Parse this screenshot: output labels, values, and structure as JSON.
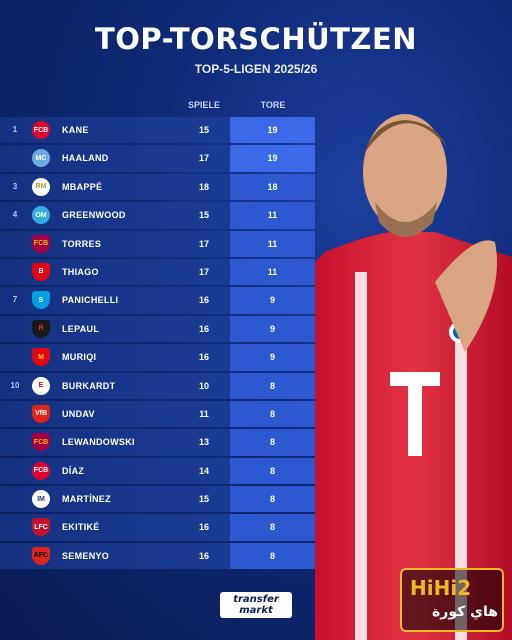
{
  "title": "TOP-TORSCHÜTZEN",
  "subtitle": "TOP-5-LIGEN 2025/26",
  "columns": {
    "apps": "SPIELE",
    "goals": "TORE"
  },
  "rows": [
    {
      "rank": "1",
      "name": "KANE",
      "apps": "15",
      "goals": "19",
      "crest": "bayern-crest-icon",
      "crest_bg": "#dc052d",
      "crest_fg": "#ffffff",
      "crest_text": "FCB"
    },
    {
      "rank": "",
      "name": "HAALAND",
      "apps": "17",
      "goals": "19",
      "crest": "man-city-crest-icon",
      "crest_bg": "#6cabdd",
      "crest_fg": "#ffffff",
      "crest_text": "MC"
    },
    {
      "rank": "3",
      "name": "MBAPPÉ",
      "apps": "18",
      "goals": "18",
      "crest": "real-madrid-crest-icon",
      "crest_bg": "#ffffff",
      "crest_fg": "#b8962e",
      "crest_text": "RM"
    },
    {
      "rank": "4",
      "name": "GREENWOOD",
      "apps": "15",
      "goals": "11",
      "crest": "marseille-crest-icon",
      "crest_bg": "#2faee0",
      "crest_fg": "#ffffff",
      "crest_text": "OM"
    },
    {
      "rank": "",
      "name": "TORRES",
      "apps": "17",
      "goals": "11",
      "crest": "barcelona-crest-icon",
      "crest_bg": "#a50044",
      "crest_fg": "#edbb00",
      "crest_text": "FCB"
    },
    {
      "rank": "",
      "name": "THIAGO",
      "apps": "17",
      "goals": "11",
      "crest": "brentford-crest-icon",
      "crest_bg": "#e30613",
      "crest_fg": "#ffffff",
      "crest_text": "B"
    },
    {
      "rank": "7",
      "name": "PANICHELLI",
      "apps": "16",
      "goals": "9",
      "crest": "strasbourg-crest-icon",
      "crest_bg": "#009fe3",
      "crest_fg": "#ffffff",
      "crest_text": "S"
    },
    {
      "rank": "",
      "name": "LEPAUL",
      "apps": "16",
      "goals": "9",
      "crest": "rennes-crest-icon",
      "crest_bg": "#1a1a1a",
      "crest_fg": "#e13327",
      "crest_text": "R"
    },
    {
      "rank": "",
      "name": "MURIQI",
      "apps": "16",
      "goals": "9",
      "crest": "mallorca-crest-icon",
      "crest_bg": "#e20613",
      "crest_fg": "#ffd200",
      "crest_text": "M"
    },
    {
      "rank": "10",
      "name": "BURKARDT",
      "apps": "10",
      "goals": "8",
      "crest": "frankfurt-crest-icon",
      "crest_bg": "#ffffff",
      "crest_fg": "#e1000f",
      "crest_text": "E"
    },
    {
      "rank": "",
      "name": "UNDAV",
      "apps": "11",
      "goals": "8",
      "crest": "stuttgart-crest-icon",
      "crest_bg": "#e32219",
      "crest_fg": "#ffffff",
      "crest_text": "VfB"
    },
    {
      "rank": "",
      "name": "LEWANDOWSKI",
      "apps": "13",
      "goals": "8",
      "crest": "barcelona-crest-icon",
      "crest_bg": "#a50044",
      "crest_fg": "#edbb00",
      "crest_text": "FCB"
    },
    {
      "rank": "",
      "name": "DÍAZ",
      "apps": "14",
      "goals": "8",
      "crest": "bayern-crest-icon",
      "crest_bg": "#dc052d",
      "crest_fg": "#ffffff",
      "crest_text": "FCB"
    },
    {
      "rank": "",
      "name": "MARTÍNEZ",
      "apps": "15",
      "goals": "8",
      "crest": "inter-crest-icon",
      "crest_bg": "#ffffff",
      "crest_fg": "#1e3a8a",
      "crest_text": "IM"
    },
    {
      "rank": "",
      "name": "EKITIKÉ",
      "apps": "16",
      "goals": "8",
      "crest": "liverpool-crest-icon",
      "crest_bg": "#c8102e",
      "crest_fg": "#ffffff",
      "crest_text": "LFC"
    },
    {
      "rank": "",
      "name": "SEMENYO",
      "apps": "16",
      "goals": "8",
      "crest": "bournemouth-crest-icon",
      "crest_bg": "#da291c",
      "crest_fg": "#000000",
      "crest_text": "AFC"
    }
  ],
  "logo": {
    "line1": "transfer",
    "line2": "markt"
  },
  "watermark": {
    "line1": "HiHi2",
    "line2": "هاي كورة"
  }
}
